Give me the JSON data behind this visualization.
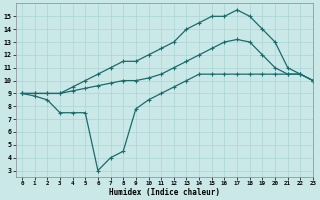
{
  "xlabel": "Humidex (Indice chaleur)",
  "bg_color": "#cbe8e8",
  "grid_color": "#aad4d4",
  "line_color": "#1a6b6b",
  "line1_x": [
    0,
    1,
    2,
    3,
    4,
    5,
    6,
    7,
    8,
    9,
    10,
    11,
    12,
    13,
    14,
    15,
    16,
    17,
    18,
    19,
    20,
    21,
    22,
    23
  ],
  "line1_y": [
    9.0,
    9.0,
    9.0,
    9.0,
    9.5,
    10.0,
    10.5,
    11.0,
    11.5,
    11.5,
    12.0,
    12.5,
    13.0,
    14.0,
    14.5,
    15.0,
    15.0,
    15.5,
    15.0,
    14.0,
    13.0,
    11.0,
    10.5,
    10.0
  ],
  "line2_x": [
    0,
    1,
    2,
    3,
    4,
    5,
    6,
    7,
    8,
    9,
    10,
    11,
    12,
    13,
    14,
    15,
    16,
    17,
    18,
    19,
    20,
    21,
    22,
    23
  ],
  "line2_y": [
    9.0,
    9.0,
    9.0,
    9.0,
    9.2,
    9.4,
    9.6,
    9.8,
    10.0,
    10.0,
    10.2,
    10.5,
    11.0,
    11.5,
    12.0,
    12.5,
    13.0,
    13.2,
    13.0,
    12.0,
    11.0,
    10.5,
    10.5,
    10.0
  ],
  "line3_x": [
    0,
    1,
    2,
    3,
    4,
    5,
    6,
    7,
    8,
    9,
    10,
    11,
    12,
    13,
    14,
    15,
    16,
    17,
    18,
    19,
    20,
    21,
    22,
    23
  ],
  "line3_y": [
    9.0,
    8.8,
    8.5,
    7.5,
    7.5,
    7.5,
    3.0,
    4.0,
    4.5,
    7.8,
    8.5,
    9.0,
    9.5,
    10.0,
    10.5,
    10.5,
    10.5,
    10.5,
    10.5,
    10.5,
    10.5,
    10.5,
    10.5,
    10.0
  ],
  "xlim": [
    -0.5,
    23
  ],
  "ylim": [
    2.5,
    16
  ],
  "yticks": [
    3,
    4,
    5,
    6,
    7,
    8,
    9,
    10,
    11,
    12,
    13,
    14,
    15
  ],
  "xticks": [
    0,
    1,
    2,
    3,
    4,
    5,
    6,
    7,
    8,
    9,
    10,
    11,
    12,
    13,
    14,
    15,
    16,
    17,
    18,
    19,
    20,
    21,
    22,
    23
  ]
}
